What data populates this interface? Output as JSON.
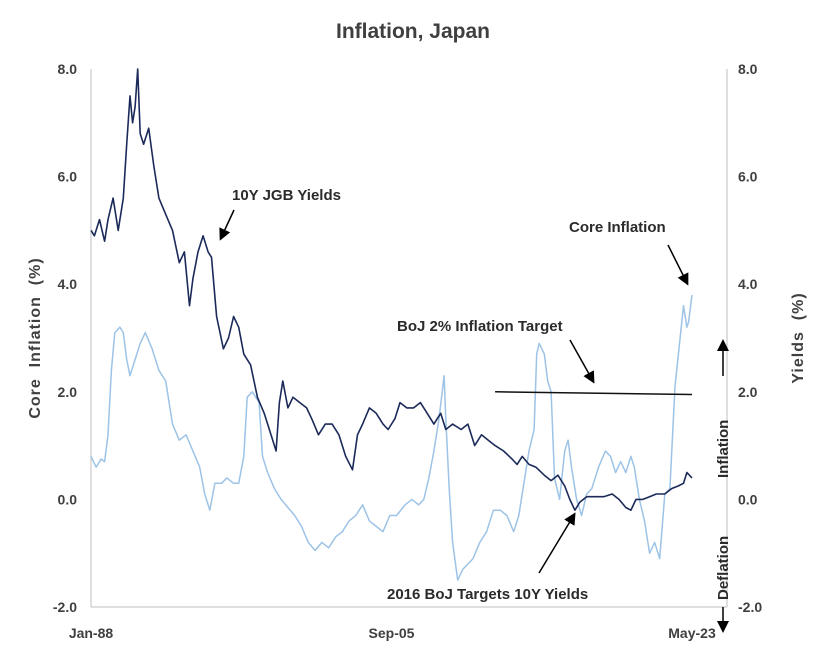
{
  "chart_data": {
    "type": "line",
    "title": "Inflation, Japan",
    "ylabel": "Core  Inflation  (%)",
    "y2label": "Yields  (%)",
    "xlabel": "",
    "x_ticks": [
      "Jan-88",
      "Sep-05",
      "May-23"
    ],
    "x_range": [
      1988.0,
      2023.4
    ],
    "ylim": [
      -2.0,
      8.0
    ],
    "y2lim": [
      -2.0,
      8.0
    ],
    "y_ticks": [
      "-2.0",
      "0.0",
      "2.0",
      "4.0",
      "6.0",
      "8.0"
    ],
    "y2_ticks": [
      "-2.0",
      "0.0",
      "2.0",
      "4.0",
      "6.0",
      "8.0"
    ],
    "grid": false,
    "series": [
      {
        "name": "10Y JGB Yields",
        "color": "#1b2a59",
        "axis": "left",
        "points": [
          [
            1988.0,
            5.0
          ],
          [
            1988.2,
            4.9
          ],
          [
            1988.5,
            5.2
          ],
          [
            1988.8,
            4.8
          ],
          [
            1989.0,
            5.2
          ],
          [
            1989.3,
            5.6
          ],
          [
            1989.6,
            5.0
          ],
          [
            1989.9,
            5.6
          ],
          [
            1990.1,
            6.6
          ],
          [
            1990.3,
            7.5
          ],
          [
            1990.45,
            7.0
          ],
          [
            1990.6,
            7.3
          ],
          [
            1990.75,
            8.0
          ],
          [
            1990.9,
            6.8
          ],
          [
            1991.1,
            6.6
          ],
          [
            1991.4,
            6.9
          ],
          [
            1991.7,
            6.2
          ],
          [
            1992.0,
            5.6
          ],
          [
            1992.4,
            5.3
          ],
          [
            1992.8,
            5.0
          ],
          [
            1993.2,
            4.4
          ],
          [
            1993.5,
            4.6
          ],
          [
            1993.8,
            3.6
          ],
          [
            1994.0,
            4.1
          ],
          [
            1994.3,
            4.6
          ],
          [
            1994.6,
            4.9
          ],
          [
            1994.9,
            4.6
          ],
          [
            1995.1,
            4.5
          ],
          [
            1995.4,
            3.4
          ],
          [
            1995.8,
            2.8
          ],
          [
            1996.1,
            3.0
          ],
          [
            1996.4,
            3.4
          ],
          [
            1996.7,
            3.2
          ],
          [
            1997.0,
            2.7
          ],
          [
            1997.4,
            2.5
          ],
          [
            1997.8,
            1.9
          ],
          [
            1998.2,
            1.6
          ],
          [
            1998.6,
            1.2
          ],
          [
            1998.9,
            0.9
          ],
          [
            1999.1,
            1.8
          ],
          [
            1999.3,
            2.2
          ],
          [
            1999.6,
            1.7
          ],
          [
            1999.9,
            1.9
          ],
          [
            2000.3,
            1.8
          ],
          [
            2000.7,
            1.7
          ],
          [
            2001.0,
            1.5
          ],
          [
            2001.4,
            1.2
          ],
          [
            2001.8,
            1.4
          ],
          [
            2002.2,
            1.4
          ],
          [
            2002.6,
            1.2
          ],
          [
            2003.0,
            0.8
          ],
          [
            2003.4,
            0.55
          ],
          [
            2003.7,
            1.2
          ],
          [
            2004.0,
            1.4
          ],
          [
            2004.4,
            1.7
          ],
          [
            2004.8,
            1.6
          ],
          [
            2005.2,
            1.4
          ],
          [
            2005.5,
            1.3
          ],
          [
            2005.9,
            1.5
          ],
          [
            2006.2,
            1.8
          ],
          [
            2006.6,
            1.7
          ],
          [
            2007.0,
            1.7
          ],
          [
            2007.4,
            1.8
          ],
          [
            2007.8,
            1.6
          ],
          [
            2008.2,
            1.4
          ],
          [
            2008.6,
            1.6
          ],
          [
            2008.9,
            1.3
          ],
          [
            2009.3,
            1.4
          ],
          [
            2009.8,
            1.3
          ],
          [
            2010.2,
            1.4
          ],
          [
            2010.6,
            1.0
          ],
          [
            2011.0,
            1.2
          ],
          [
            2011.4,
            1.1
          ],
          [
            2011.8,
            1.0
          ],
          [
            2012.3,
            0.9
          ],
          [
            2012.8,
            0.75
          ],
          [
            2013.1,
            0.65
          ],
          [
            2013.4,
            0.8
          ],
          [
            2013.8,
            0.65
          ],
          [
            2014.2,
            0.6
          ],
          [
            2014.7,
            0.45
          ],
          [
            2015.1,
            0.35
          ],
          [
            2015.5,
            0.45
          ],
          [
            2015.9,
            0.25
          ],
          [
            2016.2,
            0.0
          ],
          [
            2016.5,
            -0.2
          ],
          [
            2016.8,
            -0.05
          ],
          [
            2017.2,
            0.05
          ],
          [
            2017.7,
            0.05
          ],
          [
            2018.2,
            0.05
          ],
          [
            2018.7,
            0.1
          ],
          [
            2019.1,
            0.0
          ],
          [
            2019.5,
            -0.15
          ],
          [
            2019.8,
            -0.2
          ],
          [
            2020.1,
            0.0
          ],
          [
            2020.5,
            0.0
          ],
          [
            2020.9,
            0.05
          ],
          [
            2021.3,
            0.1
          ],
          [
            2021.8,
            0.1
          ],
          [
            2022.2,
            0.2
          ],
          [
            2022.6,
            0.25
          ],
          [
            2022.9,
            0.3
          ],
          [
            2023.1,
            0.5
          ],
          [
            2023.4,
            0.4
          ]
        ]
      },
      {
        "name": "Core Inflation",
        "color": "#9dc3e6",
        "axis": "right",
        "points": [
          [
            1988.0,
            0.8
          ],
          [
            1988.3,
            0.6
          ],
          [
            1988.6,
            0.75
          ],
          [
            1988.8,
            0.7
          ],
          [
            1989.0,
            1.2
          ],
          [
            1989.2,
            2.4
          ],
          [
            1989.4,
            3.1
          ],
          [
            1989.7,
            3.2
          ],
          [
            1989.9,
            3.1
          ],
          [
            1990.1,
            2.6
          ],
          [
            1990.3,
            2.3
          ],
          [
            1990.6,
            2.6
          ],
          [
            1990.9,
            2.9
          ],
          [
            1991.2,
            3.1
          ],
          [
            1991.6,
            2.8
          ],
          [
            1992.0,
            2.4
          ],
          [
            1992.4,
            2.2
          ],
          [
            1992.8,
            1.4
          ],
          [
            1993.2,
            1.1
          ],
          [
            1993.6,
            1.2
          ],
          [
            1994.0,
            0.9
          ],
          [
            1994.4,
            0.6
          ],
          [
            1994.7,
            0.1
          ],
          [
            1995.0,
            -0.2
          ],
          [
            1995.3,
            0.3
          ],
          [
            1995.7,
            0.3
          ],
          [
            1996.0,
            0.4
          ],
          [
            1996.4,
            0.3
          ],
          [
            1996.7,
            0.3
          ],
          [
            1997.0,
            0.8
          ],
          [
            1997.2,
            1.9
          ],
          [
            1997.5,
            2.0
          ],
          [
            1997.9,
            1.8
          ],
          [
            1998.1,
            0.8
          ],
          [
            1998.4,
            0.5
          ],
          [
            1998.8,
            0.2
          ],
          [
            1999.2,
            0.0
          ],
          [
            1999.6,
            -0.15
          ],
          [
            2000.0,
            -0.3
          ],
          [
            2000.4,
            -0.5
          ],
          [
            2000.8,
            -0.8
          ],
          [
            2001.2,
            -0.95
          ],
          [
            2001.6,
            -0.8
          ],
          [
            2002.0,
            -0.9
          ],
          [
            2002.4,
            -0.7
          ],
          [
            2002.8,
            -0.6
          ],
          [
            2003.2,
            -0.4
          ],
          [
            2003.6,
            -0.3
          ],
          [
            2004.0,
            -0.1
          ],
          [
            2004.4,
            -0.4
          ],
          [
            2004.8,
            -0.5
          ],
          [
            2005.2,
            -0.6
          ],
          [
            2005.6,
            -0.3
          ],
          [
            2006.0,
            -0.3
          ],
          [
            2006.5,
            -0.1
          ],
          [
            2006.9,
            0.0
          ],
          [
            2007.3,
            -0.1
          ],
          [
            2007.6,
            0.0
          ],
          [
            2007.9,
            0.4
          ],
          [
            2008.2,
            0.9
          ],
          [
            2008.5,
            1.5
          ],
          [
            2008.8,
            2.3
          ],
          [
            2008.9,
            1.5
          ],
          [
            2009.1,
            0.2
          ],
          [
            2009.3,
            -0.8
          ],
          [
            2009.6,
            -1.5
          ],
          [
            2009.9,
            -1.3
          ],
          [
            2010.2,
            -1.2
          ],
          [
            2010.5,
            -1.1
          ],
          [
            2010.9,
            -0.8
          ],
          [
            2011.3,
            -0.6
          ],
          [
            2011.7,
            -0.2
          ],
          [
            2012.1,
            -0.2
          ],
          [
            2012.5,
            -0.3
          ],
          [
            2012.9,
            -0.6
          ],
          [
            2013.2,
            -0.3
          ],
          [
            2013.5,
            0.3
          ],
          [
            2013.8,
            0.9
          ],
          [
            2014.1,
            1.3
          ],
          [
            2014.25,
            2.7
          ],
          [
            2014.4,
            2.9
          ],
          [
            2014.7,
            2.7
          ],
          [
            2014.9,
            2.2
          ],
          [
            2015.1,
            2.0
          ],
          [
            2015.3,
            0.4
          ],
          [
            2015.6,
            0.0
          ],
          [
            2015.9,
            0.9
          ],
          [
            2016.1,
            1.1
          ],
          [
            2016.3,
            0.6
          ],
          [
            2016.6,
            0.0
          ],
          [
            2016.9,
            -0.3
          ],
          [
            2017.2,
            0.1
          ],
          [
            2017.5,
            0.2
          ],
          [
            2017.9,
            0.6
          ],
          [
            2018.3,
            0.9
          ],
          [
            2018.6,
            0.8
          ],
          [
            2018.9,
            0.5
          ],
          [
            2019.2,
            0.7
          ],
          [
            2019.5,
            0.5
          ],
          [
            2019.8,
            0.8
          ],
          [
            2020.0,
            0.6
          ],
          [
            2020.3,
            0.0
          ],
          [
            2020.6,
            -0.4
          ],
          [
            2020.9,
            -1.0
          ],
          [
            2021.2,
            -0.8
          ],
          [
            2021.5,
            -1.1
          ],
          [
            2021.8,
            0.1
          ],
          [
            2022.1,
            0.2
          ],
          [
            2022.4,
            2.1
          ],
          [
            2022.7,
            3.0
          ],
          [
            2022.9,
            3.6
          ],
          [
            2023.1,
            3.2
          ],
          [
            2023.2,
            3.3
          ],
          [
            2023.4,
            3.8
          ]
        ]
      },
      {
        "name": "BoJ 2% Inflation Target",
        "color": "#111111",
        "axis": "right",
        "points": [
          [
            2011.8,
            2.0
          ],
          [
            2023.4,
            1.95
          ]
        ]
      }
    ],
    "annotations": [
      {
        "text": "10Y JGB Yields"
      },
      {
        "text": "Core Inflation"
      },
      {
        "text": "BoJ 2% Inflation Target"
      },
      {
        "text": "2016 BoJ Targets 10Y Yields"
      },
      {
        "text": "Inflation"
      },
      {
        "text": "Deflation"
      }
    ]
  }
}
